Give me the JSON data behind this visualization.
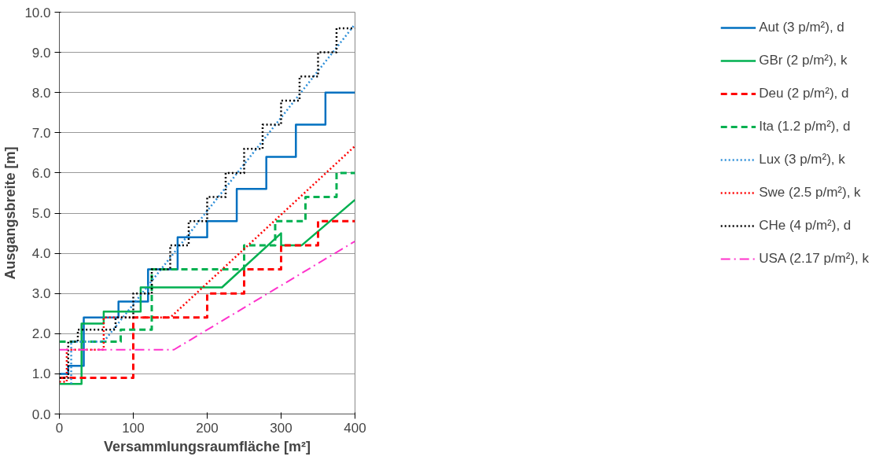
{
  "chart_data": {
    "type": "line",
    "xlabel": "Versammlungsraumfläche [m²]",
    "ylabel": "Ausgangsbreite [m]",
    "xlim": [
      0,
      400
    ],
    "ylim": [
      0,
      10
    ],
    "xticks": [
      0,
      100,
      200,
      300,
      400
    ],
    "yticks": [
      {
        "value": 0,
        "label": "0.0"
      },
      {
        "value": 1,
        "label": "1.0"
      },
      {
        "value": 2,
        "label": "2.0"
      },
      {
        "value": 3,
        "label": "3.0"
      },
      {
        "value": 4,
        "label": "4.0"
      },
      {
        "value": 5,
        "label": "5.0"
      },
      {
        "value": 6,
        "label": "6.0"
      },
      {
        "value": 7,
        "label": "7.0"
      },
      {
        "value": 8,
        "label": "8.0"
      },
      {
        "value": 9,
        "label": "9.0"
      },
      {
        "value": 10,
        "label": "10.0"
      }
    ],
    "grid": "y",
    "legend": "right",
    "marker": "none",
    "series": [
      {
        "name": "Aut (3 p/m²), d",
        "color": "#0070c0",
        "line_style": "solid",
        "x": [
          0,
          12,
          12,
          33,
          33,
          80,
          80,
          120,
          120,
          160,
          160,
          200,
          200,
          240,
          240,
          280,
          280,
          320,
          320,
          360,
          360,
          400
        ],
        "values": [
          1.0,
          1.0,
          1.2,
          1.2,
          2.4,
          2.4,
          2.8,
          2.8,
          3.6,
          3.6,
          4.4,
          4.4,
          4.8,
          4.8,
          5.6,
          5.6,
          6.4,
          6.4,
          7.2,
          7.2,
          8.0,
          8.0
        ]
      },
      {
        "name": "GBr (2 p/m²), k",
        "color": "#00b050",
        "line_style": "solid",
        "x": [
          0,
          30,
          30,
          60,
          60,
          110,
          110,
          220,
          300,
          300,
          328,
          400
        ],
        "values": [
          0.75,
          0.75,
          2.25,
          2.25,
          2.55,
          2.55,
          3.15,
          3.15,
          4.5,
          4.2,
          4.2,
          5.33
        ]
      },
      {
        "name": "Deu (2 p/m²), d",
        "color": "#ff0000",
        "line_style": "dashed",
        "x": [
          0,
          100,
          100,
          200,
          200,
          250,
          250,
          300,
          300,
          350,
          350,
          400
        ],
        "values": [
          0.9,
          0.9,
          2.4,
          2.4,
          3.0,
          3.0,
          3.6,
          3.6,
          4.2,
          4.2,
          4.8,
          4.8
        ]
      },
      {
        "name": "Ita (1.2 p/m²), d",
        "color": "#00b050",
        "line_style": "dashed",
        "x": [
          0,
          83,
          83,
          125,
          125,
          250,
          250,
          292,
          292,
          333,
          333,
          375,
          375,
          400
        ],
        "values": [
          1.8,
          1.8,
          2.1,
          2.1,
          3.6,
          3.6,
          4.2,
          4.2,
          4.8,
          4.8,
          5.4,
          5.4,
          6.0,
          6.0
        ]
      },
      {
        "name": "Lux (3 p/m²), k",
        "color": "#2e8fd8",
        "line_style": "dotted",
        "x": [
          16,
          16,
          60,
          400
        ],
        "values": [
          0.75,
          1.8,
          1.8,
          9.7
        ]
      },
      {
        "name": "Swe (2.5 p/m²), k",
        "color": "#ff0000",
        "line_style": "dotted",
        "x": [
          0,
          10,
          10,
          60,
          60,
          150,
          400
        ],
        "values": [
          0.8,
          0.8,
          1.6,
          1.6,
          2.4,
          2.4,
          6.67
        ]
      },
      {
        "name": "CHe (4 p/m²), d",
        "color": "#000000",
        "line_style": "dotted",
        "x": [
          0,
          12,
          12,
          25,
          25,
          76,
          76,
          100,
          100,
          125,
          125,
          150,
          150,
          175,
          175,
          200,
          200,
          225,
          225,
          250,
          250,
          275,
          275,
          300,
          300,
          325,
          325,
          350,
          350,
          375,
          375,
          400
        ],
        "values": [
          0.9,
          0.9,
          1.8,
          1.8,
          2.1,
          2.1,
          2.4,
          2.4,
          3.0,
          3.0,
          3.6,
          3.6,
          4.2,
          4.2,
          4.8,
          4.8,
          5.4,
          5.4,
          6.0,
          6.0,
          6.6,
          6.6,
          7.2,
          7.2,
          7.8,
          7.8,
          8.4,
          8.4,
          9.0,
          9.0,
          9.6,
          9.6
        ]
      },
      {
        "name": "USA (2.17 p/m²), k",
        "color": "#ff33cc",
        "line_style": "dashdot",
        "x": [
          0,
          155,
          400
        ],
        "values": [
          1.6,
          1.6,
          4.3
        ]
      }
    ]
  }
}
